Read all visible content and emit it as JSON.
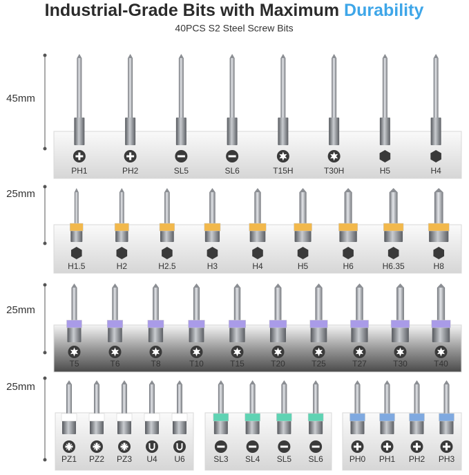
{
  "header": {
    "title": "Industrial-Grade Bits with Maximum",
    "highlight": "Durability",
    "subtitle": "40PCS S2 Steel Screw Bits"
  },
  "rows": [
    {
      "length": "45mm",
      "groups": [
        {
          "bits": [
            {
              "label": "PH1",
              "icon": "plus"
            },
            {
              "label": "PH2",
              "icon": "plus"
            },
            {
              "label": "SL5",
              "icon": "minus"
            },
            {
              "label": "SL6",
              "icon": "minus"
            },
            {
              "label": "T15H",
              "icon": "star"
            },
            {
              "label": "T30H",
              "icon": "star"
            },
            {
              "label": "H5",
              "icon": "hex"
            },
            {
              "label": "H4",
              "icon": "hex"
            }
          ]
        }
      ]
    },
    {
      "length": "25mm",
      "band": "#f2b84b",
      "groups": [
        {
          "bits": [
            {
              "label": "H1.5",
              "icon": "hex"
            },
            {
              "label": "H2",
              "icon": "hex"
            },
            {
              "label": "H2.5",
              "icon": "hex"
            },
            {
              "label": "H3",
              "icon": "hex"
            },
            {
              "label": "H4",
              "icon": "hex"
            },
            {
              "label": "H5",
              "icon": "hex"
            },
            {
              "label": "H6",
              "icon": "hex"
            },
            {
              "label": "H6.35",
              "icon": "hex"
            },
            {
              "label": "H8",
              "icon": "hex"
            }
          ]
        }
      ]
    },
    {
      "length": "25mm",
      "band": "#a99be8",
      "dark": true,
      "groups": [
        {
          "bits": [
            {
              "label": "T5",
              "icon": "star"
            },
            {
              "label": "T6",
              "icon": "star"
            },
            {
              "label": "T8",
              "icon": "star"
            },
            {
              "label": "T10",
              "icon": "star"
            },
            {
              "label": "T15",
              "icon": "star"
            },
            {
              "label": "T20",
              "icon": "star"
            },
            {
              "label": "T25",
              "icon": "star"
            },
            {
              "label": "T27",
              "icon": "star"
            },
            {
              "label": "T30",
              "icon": "star"
            },
            {
              "label": "T40",
              "icon": "star"
            }
          ]
        }
      ]
    },
    {
      "length": "25mm",
      "groups": [
        {
          "band": "#ffffff",
          "bits": [
            {
              "label": "PZ1",
              "icon": "pz"
            },
            {
              "label": "PZ2",
              "icon": "pz"
            },
            {
              "label": "PZ3",
              "icon": "pz"
            },
            {
              "label": "U4",
              "icon": "u"
            },
            {
              "label": "U6",
              "icon": "u"
            }
          ]
        },
        {
          "band": "#5fd3b3",
          "bits": [
            {
              "label": "SL3",
              "icon": "minus"
            },
            {
              "label": "SL4",
              "icon": "minus"
            },
            {
              "label": "SL5",
              "icon": "minus"
            },
            {
              "label": "SL6",
              "icon": "minus"
            }
          ]
        },
        {
          "band": "#7fa9e0",
          "bits": [
            {
              "label": "PH0",
              "icon": "plus"
            },
            {
              "label": "PH1",
              "icon": "plus"
            },
            {
              "label": "PH2",
              "icon": "plus"
            },
            {
              "label": "PH3",
              "icon": "plus"
            }
          ]
        }
      ]
    }
  ]
}
